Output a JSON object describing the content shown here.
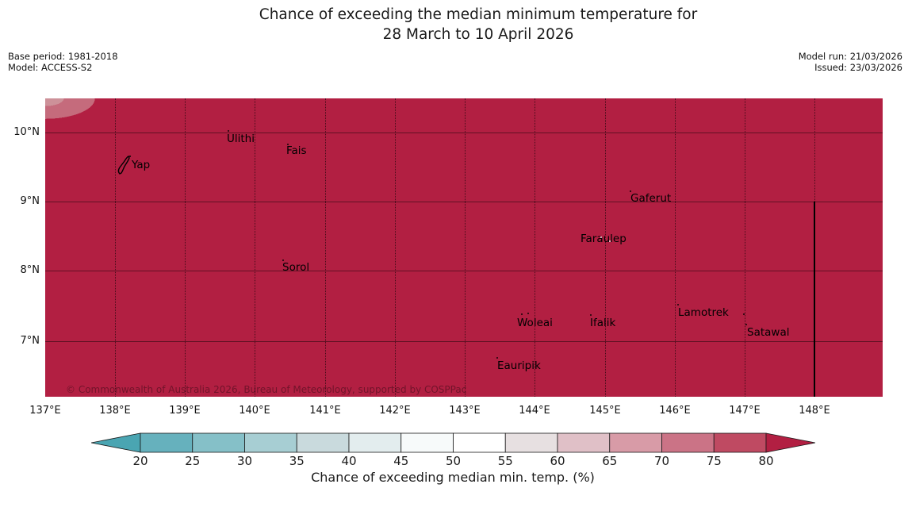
{
  "title": {
    "line1": "Chance of exceeding the median minimum temperature for",
    "line2": "28 March to 10 April 2026"
  },
  "meta_left": {
    "base_period": "Base period: 1981-2018",
    "model": "Model: ACCESS-S2"
  },
  "meta_right": {
    "model_run": "Model run: 21/03/2026",
    "issued": "Issued: 23/03/2026"
  },
  "map": {
    "fill_color": "#b21f42",
    "corner_band_colors": [
      "#cd9199",
      "#c56b7c"
    ],
    "copyright": "© Commonwealth of Australia 2026, Bureau of Meteorology, supported by COSPPac",
    "places": [
      {
        "name": "Ulithi"
      },
      {
        "name": "Fais"
      },
      {
        "name": "Yap"
      },
      {
        "name": "Gaferut"
      },
      {
        "name": "Faraulep"
      },
      {
        "name": "Sorol"
      },
      {
        "name": "Woleai"
      },
      {
        "name": "Ifalik"
      },
      {
        "name": "Lamotrek"
      },
      {
        "name": "Satawal"
      },
      {
        "name": "Eauripik"
      }
    ]
  },
  "axes": {
    "lat": [
      "10°N",
      "9°N",
      "8°N",
      "7°N"
    ],
    "lon": [
      "137°E",
      "138°E",
      "139°E",
      "140°E",
      "141°E",
      "142°E",
      "143°E",
      "144°E",
      "145°E",
      "146°E",
      "147°E",
      "148°E"
    ]
  },
  "colorbar": {
    "label": "Chance of exceeding median min. temp. (%)",
    "ticks": [
      "20",
      "25",
      "30",
      "35",
      "40",
      "45",
      "50",
      "55",
      "60",
      "65",
      "70",
      "75",
      "80"
    ],
    "segment_colors": [
      "#66b1bd",
      "#85c0c8",
      "#a7ced3",
      "#c9dadd",
      "#e3edee",
      "#f7fafa",
      "#ffffff",
      "#e7e0e1",
      "#e0c0c7",
      "#d89ba7",
      "#cb7386",
      "#bf4a62"
    ],
    "left_arrow_color": "#4aa5b2",
    "right_arrow_color": "#b21f42",
    "outline_color": "#1a1a1a"
  },
  "chart_data": {
    "type": "heatmap",
    "title": "Chance of exceeding the median minimum temperature for 28 March to 10 April 2026",
    "region": {
      "lon_range_deg_e": [
        137,
        149
      ],
      "lat_range_deg_n": [
        6.2,
        10.5
      ]
    },
    "value_field": "Chance of exceeding median min. temp. (%)",
    "scale_ticks": [
      20,
      25,
      30,
      35,
      40,
      45,
      50,
      55,
      60,
      65,
      70,
      75,
      80
    ],
    "dominant_value": ">80",
    "note_low_patch": "small area of lower probability (~65-75) at extreme northwest corner near 137°E, 10.5°N"
  }
}
